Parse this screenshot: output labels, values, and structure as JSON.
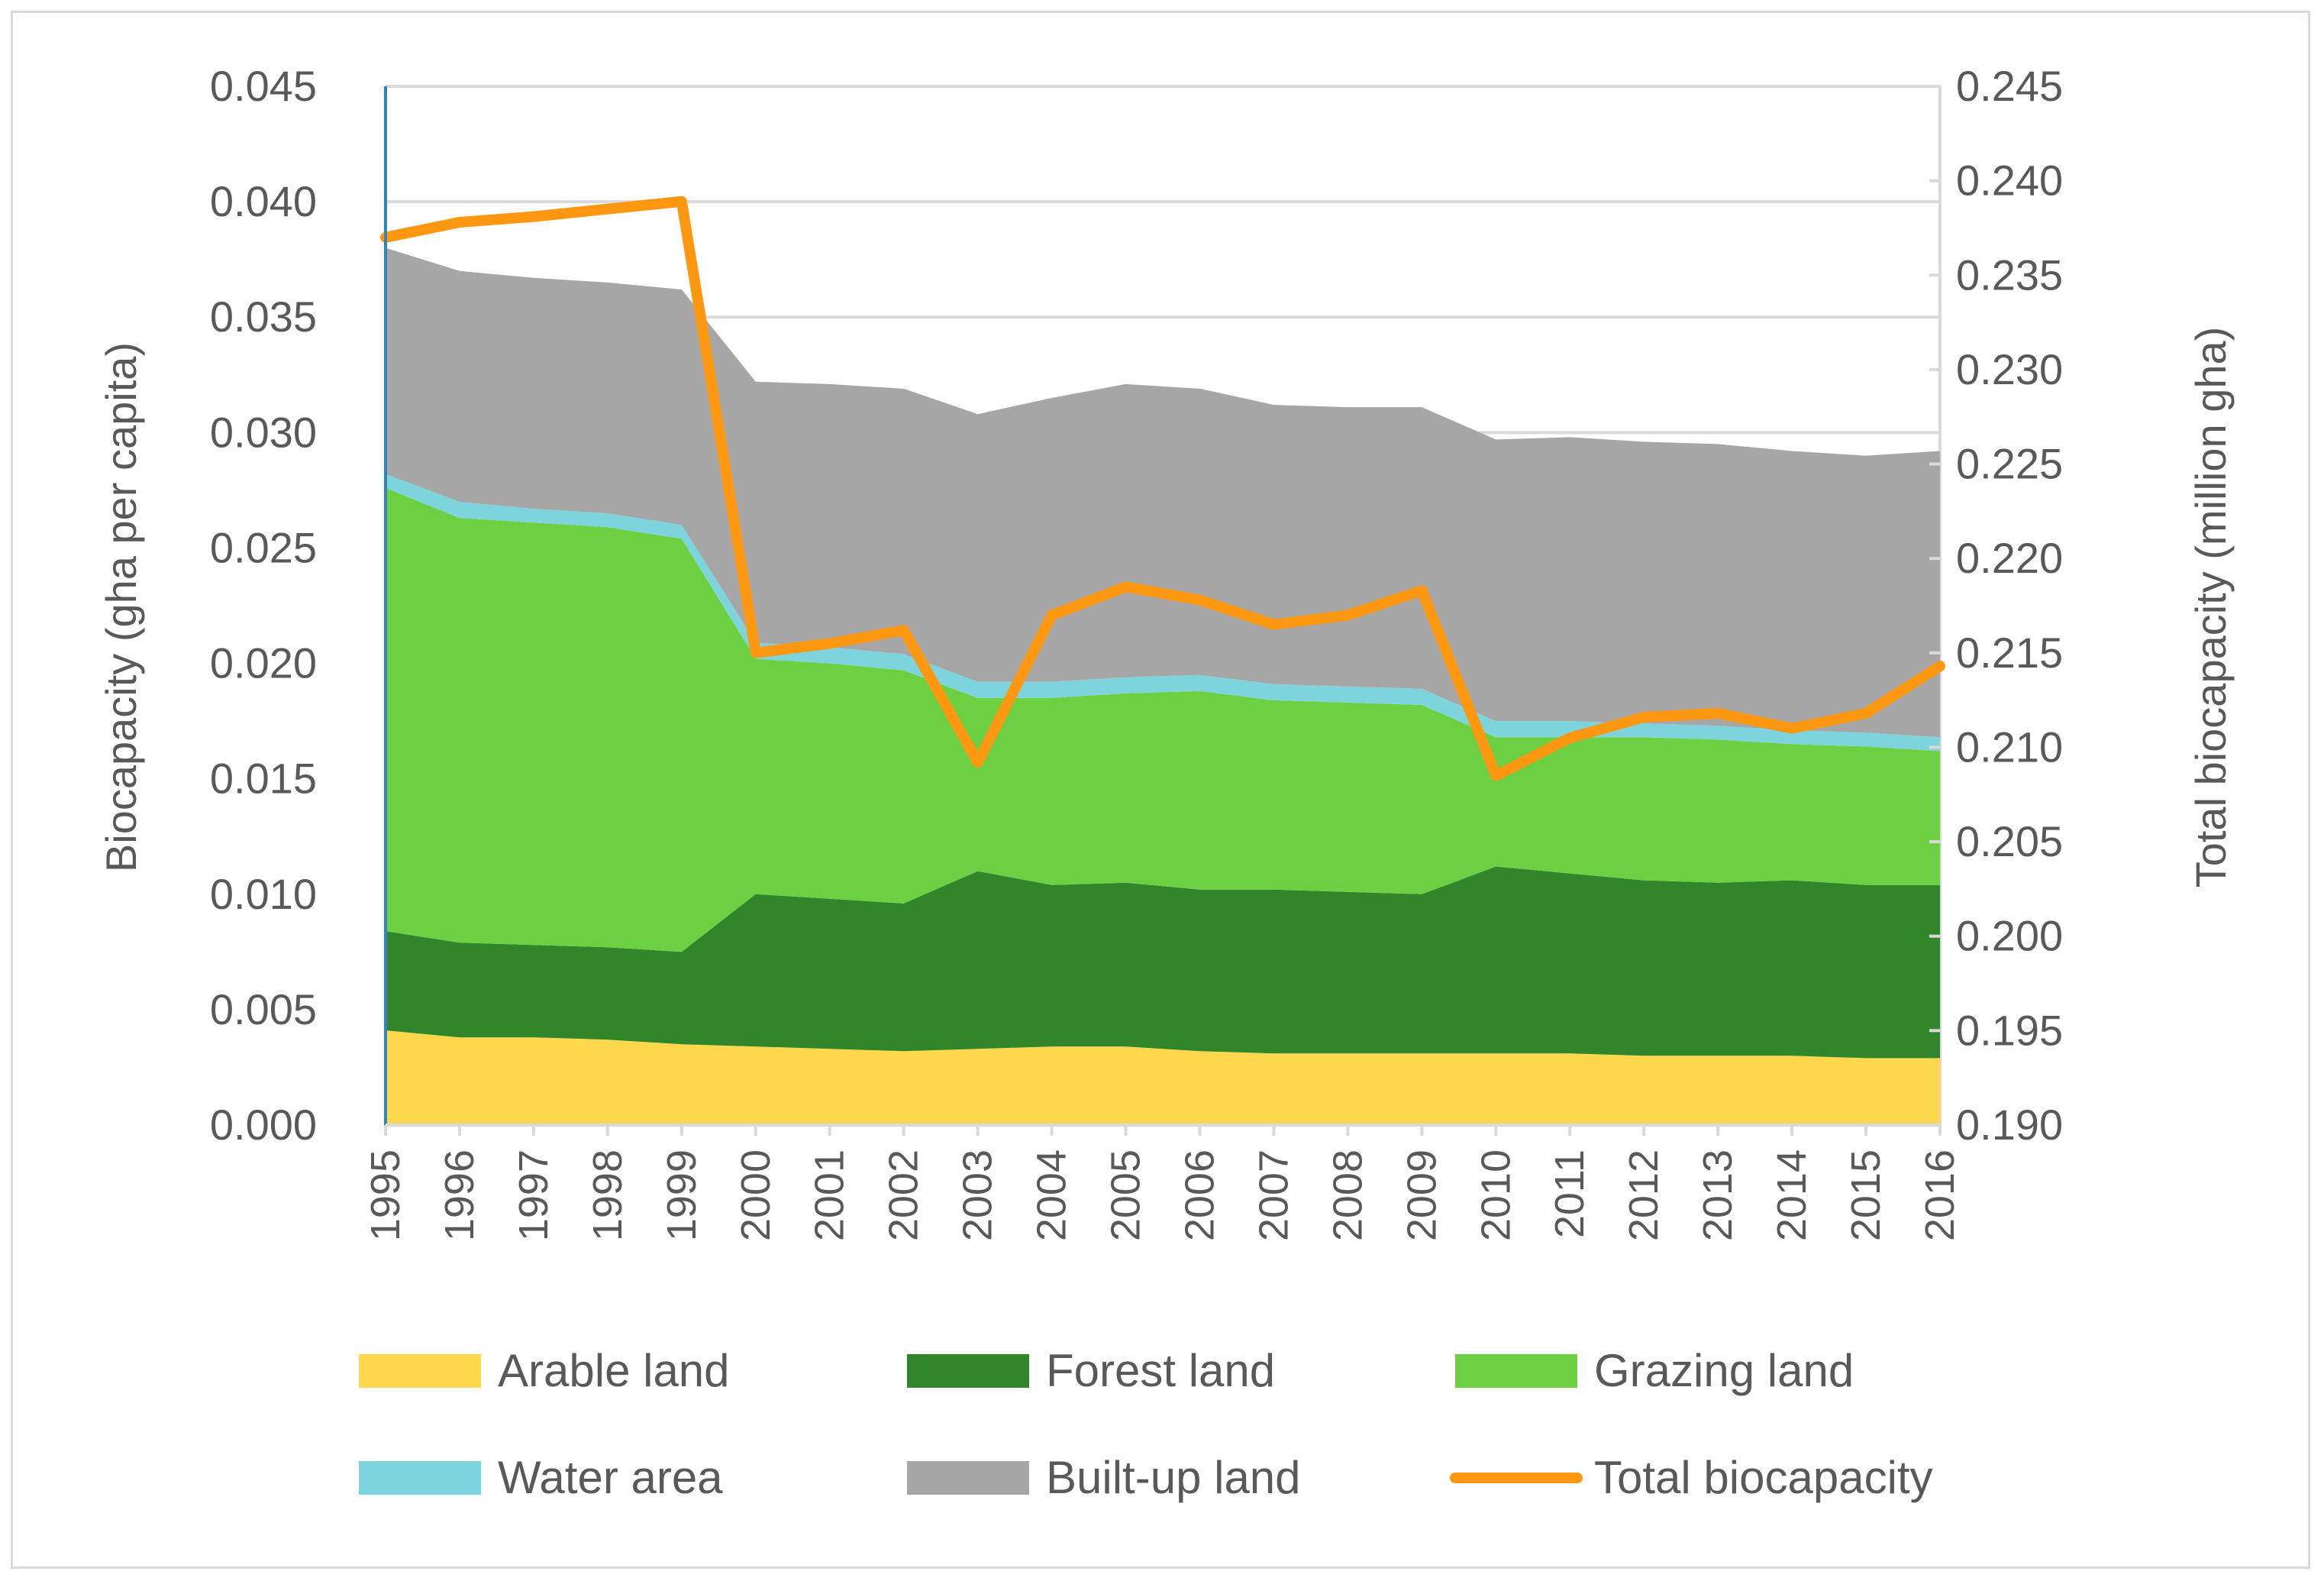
{
  "chart_data": {
    "type": "area",
    "x": [
      1995,
      1996,
      1997,
      1998,
      1999,
      2000,
      2001,
      2002,
      2003,
      2004,
      2005,
      2006,
      2007,
      2008,
      2009,
      2010,
      2011,
      2012,
      2013,
      2014,
      2015,
      2016
    ],
    "x_tick_labels": [
      "1995",
      "1996",
      "1997",
      "1998",
      "1999",
      "2000",
      "2001",
      "2002",
      "2003",
      "2004",
      "2005",
      "2006",
      "2007",
      "2008",
      "2009",
      "2010",
      "2011",
      "2012",
      "2013",
      "2014",
      "2015",
      "2016"
    ],
    "stacked": true,
    "ylabel": "Biocapacity (gha per capita)",
    "y2label": "Total biocapacity (million gha)",
    "ylim": [
      0,
      0.045
    ],
    "y2lim": [
      0.19,
      0.245
    ],
    "y_ticks": [
      0,
      0.005,
      0.01,
      0.015,
      0.02,
      0.025,
      0.03,
      0.035,
      0.04,
      0.045
    ],
    "y_tick_labels": [
      "0.000",
      "0.005",
      "0.010",
      "0.015",
      "0.020",
      "0.025",
      "0.030",
      "0.035",
      "0.040",
      "0.045"
    ],
    "y2_ticks": [
      0.19,
      0.195,
      0.2,
      0.205,
      0.21,
      0.215,
      0.22,
      0.225,
      0.23,
      0.235,
      0.24,
      0.245
    ],
    "y2_tick_labels": [
      "0.190",
      "0.195",
      "0.200",
      "0.205",
      "0.210",
      "0.215",
      "0.220",
      "0.225",
      "0.230",
      "0.235",
      "0.240",
      "0.245"
    ],
    "grid": true,
    "legend_position": "bottom",
    "series": [
      {
        "name": "Arable land",
        "type": "area",
        "axis": "left",
        "color": "#ffd84d",
        "values": [
          0.0041,
          0.0038,
          0.0038,
          0.0037,
          0.0035,
          0.0034,
          0.0033,
          0.0032,
          0.0033,
          0.0034,
          0.0034,
          0.0032,
          0.0031,
          0.0031,
          0.0031,
          0.0031,
          0.0031,
          0.003,
          0.003,
          0.003,
          0.0029,
          0.0029
        ]
      },
      {
        "name": "Forest land",
        "type": "area",
        "axis": "left",
        "color": "#31862c",
        "values": [
          0.0043,
          0.0041,
          0.004,
          0.004,
          0.004,
          0.0066,
          0.0065,
          0.0064,
          0.0077,
          0.007,
          0.0071,
          0.007,
          0.0071,
          0.007,
          0.0069,
          0.0081,
          0.0078,
          0.0076,
          0.0075,
          0.0076,
          0.0075,
          0.0075
        ]
      },
      {
        "name": "Grazing land",
        "type": "area",
        "axis": "left",
        "color": "#6dd043",
        "values": [
          0.0192,
          0.0184,
          0.0183,
          0.0182,
          0.0179,
          0.0102,
          0.0102,
          0.0101,
          0.0075,
          0.0081,
          0.0082,
          0.0086,
          0.0082,
          0.0082,
          0.0082,
          0.0056,
          0.0059,
          0.0062,
          0.0062,
          0.0059,
          0.006,
          0.0058
        ]
      },
      {
        "name": "Water area",
        "type": "area",
        "axis": "left",
        "color": "#7dd4dc",
        "values": [
          0.0006,
          0.0007,
          0.0006,
          0.0006,
          0.0006,
          0.0007,
          0.0007,
          0.0007,
          0.0007,
          0.0007,
          0.0007,
          0.0007,
          0.0007,
          0.0007,
          0.0007,
          0.0007,
          0.0007,
          0.0006,
          0.0006,
          0.0006,
          0.0006,
          0.0006
        ]
      },
      {
        "name": "Built-up land",
        "type": "area",
        "axis": "left",
        "color": "#a6a6a6",
        "values": [
          0.0098,
          0.01,
          0.01,
          0.01,
          0.0102,
          0.0113,
          0.0114,
          0.0115,
          0.0116,
          0.0123,
          0.0127,
          0.0124,
          0.0121,
          0.0121,
          0.0122,
          0.0122,
          0.0123,
          0.0122,
          0.0122,
          0.0121,
          0.012,
          0.0124
        ]
      },
      {
        "name": "Total biocapacity",
        "type": "line",
        "axis": "right",
        "color": "#ff9710",
        "values": [
          0.237,
          0.2378,
          0.2381,
          0.2385,
          0.2389,
          0.215,
          0.2155,
          0.2162,
          0.2092,
          0.217,
          0.2185,
          0.2178,
          0.2165,
          0.217,
          0.2183,
          0.2085,
          0.2105,
          0.2116,
          0.2118,
          0.211,
          0.2118,
          0.2143
        ]
      }
    ]
  }
}
